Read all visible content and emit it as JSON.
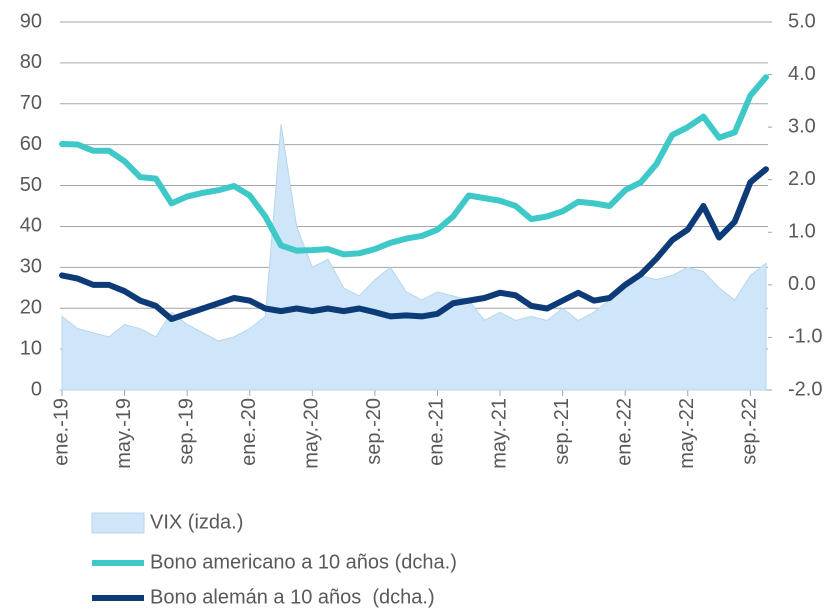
{
  "chart_data": {
    "type": "line",
    "categories": [
      "ene.-19",
      null,
      null,
      null,
      "may.-19",
      null,
      null,
      null,
      "sep.-19",
      null,
      null,
      null,
      "ene.-20",
      null,
      null,
      null,
      "may.-20",
      null,
      null,
      null,
      "sep.-20",
      null,
      null,
      null,
      "ene.-21",
      null,
      null,
      null,
      "may.-21",
      null,
      null,
      null,
      "sep.-21",
      null,
      null,
      null,
      "ene.-22",
      null,
      null,
      null,
      "may.-22",
      null,
      null,
      null,
      "sep.-22",
      null
    ],
    "series": [
      {
        "name": "VIX (izda.)",
        "color": "#cfe6f8",
        "axis": "y",
        "style": "area",
        "values": [
          18,
          15,
          14,
          13,
          16,
          15,
          13,
          19,
          16,
          14,
          12,
          13,
          15,
          18,
          65,
          40,
          30,
          32,
          25,
          23,
          27,
          30,
          24,
          22,
          24,
          23,
          22,
          17,
          19,
          17,
          18,
          17,
          20,
          17,
          19,
          22,
          26,
          28,
          27,
          28,
          30,
          29,
          25,
          22,
          28,
          31
        ]
      },
      {
        "name": "Bono americano a 10 años (dcha.)",
        "color": "#3ec8c8",
        "axis": "y2",
        "values": [
          2.68,
          2.67,
          2.55,
          2.55,
          2.35,
          2.05,
          2.02,
          1.55,
          1.68,
          1.75,
          1.8,
          1.88,
          1.7,
          1.3,
          0.75,
          0.65,
          0.66,
          0.68,
          0.58,
          0.6,
          0.68,
          0.8,
          0.88,
          0.93,
          1.05,
          1.3,
          1.7,
          1.65,
          1.6,
          1.5,
          1.25,
          1.3,
          1.4,
          1.58,
          1.55,
          1.5,
          1.8,
          1.95,
          2.3,
          2.85,
          3.0,
          3.2,
          2.8,
          2.9,
          3.6,
          3.95
        ]
      },
      {
        "name": "Bono alemán a 10 años  (dcha.)",
        "color": "#0d3b78",
        "axis": "y2",
        "values": [
          0.18,
          0.12,
          0.0,
          0.0,
          -0.12,
          -0.3,
          -0.4,
          -0.65,
          -0.55,
          -0.45,
          -0.35,
          -0.25,
          -0.3,
          -0.45,
          -0.5,
          -0.45,
          -0.5,
          -0.45,
          -0.5,
          -0.45,
          -0.52,
          -0.6,
          -0.58,
          -0.6,
          -0.55,
          -0.35,
          -0.3,
          -0.25,
          -0.15,
          -0.2,
          -0.4,
          -0.45,
          -0.3,
          -0.15,
          -0.3,
          -0.25,
          0.0,
          0.2,
          0.5,
          0.85,
          1.05,
          1.5,
          0.9,
          1.2,
          1.95,
          2.2
        ]
      }
    ],
    "ylim": [
      0,
      90
    ],
    "yticks": [
      0,
      10,
      20,
      30,
      40,
      50,
      60,
      70,
      80,
      90
    ],
    "y2lim": [
      -2,
      5
    ],
    "y2ticks": [
      {
        "value": -2,
        "label": "-2.0"
      },
      {
        "value": -1,
        "label": "-1.0"
      },
      {
        "value": 0,
        "label": "0.0"
      },
      {
        "value": 1,
        "label": "1.0"
      },
      {
        "value": 2,
        "label": "2.0"
      },
      {
        "value": 3,
        "label": "3.0"
      },
      {
        "value": 4,
        "label": "4.0"
      },
      {
        "value": 5,
        "label": "5.0"
      }
    ],
    "grid": true,
    "legend": "bottom"
  }
}
